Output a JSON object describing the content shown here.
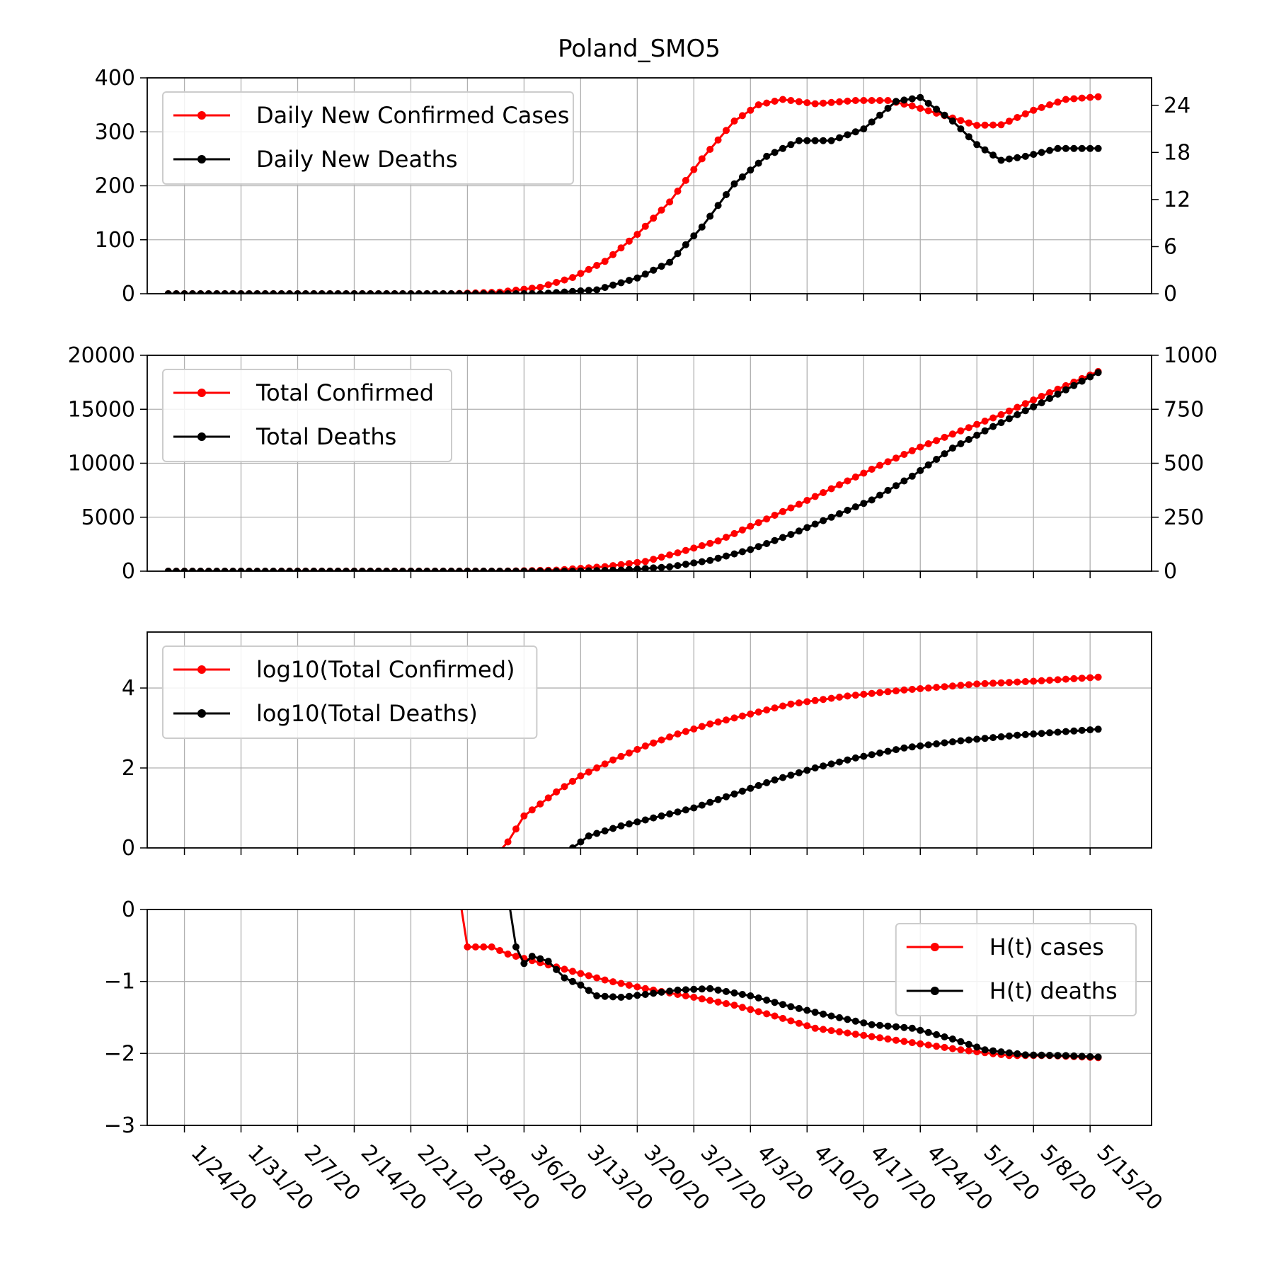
{
  "figure_title": "Poland_SMO5",
  "colors": {
    "cases": "#ff0000",
    "deaths": "#000000",
    "grid": "#b0b0b0"
  },
  "chart_data": [
    {
      "type": "line",
      "title": "Poland_SMO5",
      "x": "days from 1/22/20 to 5/16/20",
      "xticks": [
        "1/24/20",
        "1/31/20",
        "2/7/20",
        "2/14/20",
        "2/21/20",
        "2/28/20",
        "3/6/20",
        "3/13/20",
        "3/20/20",
        "3/27/20",
        "4/3/20",
        "4/10/20",
        "4/17/20",
        "4/24/20",
        "5/1/20",
        "5/8/20",
        "5/15/20"
      ],
      "ylim": [
        0,
        400
      ],
      "yticks": [
        "0",
        "100",
        "200",
        "300",
        "400"
      ],
      "ylim_right": [
        0,
        27.5
      ],
      "yticks_right": [
        "0",
        "6",
        "12",
        "18",
        "24"
      ],
      "grid": true,
      "legend": "upper left",
      "series": [
        {
          "name": "Daily New Confirmed Cases",
          "axis": "left",
          "points": [
            [
              "1/22/20",
              0
            ],
            [
              "2/26/20",
              0
            ],
            [
              "3/3/20",
              3
            ],
            [
              "3/8/20",
              12
            ],
            [
              "3/12/20",
              30
            ],
            [
              "3/16/20",
              60
            ],
            [
              "3/20/20",
              110
            ],
            [
              "3/24/20",
              170
            ],
            [
              "3/28/20",
              250
            ],
            [
              "4/1/20",
              320
            ],
            [
              "4/4/20",
              350
            ],
            [
              "4/7/20",
              360
            ],
            [
              "4/11/20",
              352
            ],
            [
              "4/16/20",
              358
            ],
            [
              "4/20/20",
              358
            ],
            [
              "4/23/20",
              348
            ],
            [
              "4/27/20",
              330
            ],
            [
              "5/1/20",
              312
            ],
            [
              "5/4/20",
              313
            ],
            [
              "5/8/20",
              340
            ],
            [
              "5/12/20",
              360
            ],
            [
              "5/16/20",
              365
            ]
          ]
        },
        {
          "name": "Daily New Deaths",
          "axis": "right",
          "points": [
            [
              "1/22/20",
              0
            ],
            [
              "3/8/20",
              0
            ],
            [
              "3/15/20",
              0.5
            ],
            [
              "3/20/20",
              2
            ],
            [
              "3/24/20",
              4
            ],
            [
              "3/28/20",
              8.5
            ],
            [
              "4/1/20",
              14
            ],
            [
              "4/5/20",
              17.5
            ],
            [
              "4/9/20",
              19.5
            ],
            [
              "4/13/20",
              19.5
            ],
            [
              "4/17/20",
              21
            ],
            [
              "4/21/20",
              24.5
            ],
            [
              "4/24/20",
              25
            ],
            [
              "4/28/20",
              22
            ],
            [
              "5/1/20",
              19
            ],
            [
              "5/4/20",
              17
            ],
            [
              "5/7/20",
              17.5
            ],
            [
              "5/11/20",
              18.5
            ],
            [
              "5/16/20",
              18.5
            ]
          ]
        }
      ]
    },
    {
      "type": "line",
      "xticks": [
        "1/24/20",
        "1/31/20",
        "2/7/20",
        "2/14/20",
        "2/21/20",
        "2/28/20",
        "3/6/20",
        "3/13/20",
        "3/20/20",
        "3/27/20",
        "4/3/20",
        "4/10/20",
        "4/17/20",
        "4/24/20",
        "5/1/20",
        "5/8/20",
        "5/15/20"
      ],
      "ylim": [
        0,
        20000
      ],
      "yticks": [
        "0",
        "5000",
        "10000",
        "15000",
        "20000"
      ],
      "ylim_right": [
        0,
        1000
      ],
      "yticks_right": [
        "0",
        "250",
        "500",
        "750",
        "1000"
      ],
      "grid": true,
      "legend": "upper left",
      "series": [
        {
          "name": "Total Confirmed",
          "axis": "left",
          "points": [
            [
              "1/22/20",
              0
            ],
            [
              "3/4/20",
              10
            ],
            [
              "3/10/20",
              100
            ],
            [
              "3/16/20",
              420
            ],
            [
              "3/21/20",
              900
            ],
            [
              "3/25/20",
              1700
            ],
            [
              "3/30/20",
              2800
            ],
            [
              "4/4/20",
              4500
            ],
            [
              "4/9/20",
              6200
            ],
            [
              "4/14/20",
              8000
            ],
            [
              "4/19/20",
              9800
            ],
            [
              "4/24/20",
              11500
            ],
            [
              "4/29/20",
              13000
            ],
            [
              "5/4/20",
              14500
            ],
            [
              "5/9/20",
              16200
            ],
            [
              "5/16/20",
              18500
            ]
          ]
        },
        {
          "name": "Total Deaths",
          "axis": "right",
          "points": [
            [
              "1/22/20",
              0
            ],
            [
              "3/12/20",
              0
            ],
            [
              "3/18/20",
              5
            ],
            [
              "3/24/20",
              20
            ],
            [
              "3/29/20",
              50
            ],
            [
              "4/3/20",
              100
            ],
            [
              "4/8/20",
              170
            ],
            [
              "4/13/20",
              250
            ],
            [
              "4/18/20",
              330
            ],
            [
              "4/23/20",
              440
            ],
            [
              "4/28/20",
              570
            ],
            [
              "5/3/20",
              670
            ],
            [
              "5/9/20",
              780
            ],
            [
              "5/16/20",
              920
            ]
          ]
        }
      ]
    },
    {
      "type": "line",
      "xticks": [
        "1/24/20",
        "1/31/20",
        "2/7/20",
        "2/14/20",
        "2/21/20",
        "2/28/20",
        "3/6/20",
        "3/13/20",
        "3/20/20",
        "3/27/20",
        "4/3/20",
        "4/10/20",
        "4/17/20",
        "4/24/20",
        "5/1/20",
        "5/8/20",
        "5/15/20"
      ],
      "ylim": [
        0,
        5.4
      ],
      "yticks": [
        "0",
        "2",
        "4"
      ],
      "grid": true,
      "legend": "upper left",
      "series": [
        {
          "name": "log10(Total Confirmed)",
          "axis": "left",
          "points": [
            [
              "3/2/20",
              -0.3
            ],
            [
              "3/4/20",
              0.15
            ],
            [
              "3/6/20",
              0.8
            ],
            [
              "3/8/20",
              1.1
            ],
            [
              "3/10/20",
              1.4
            ],
            [
              "3/13/20",
              1.8
            ],
            [
              "3/17/20",
              2.2
            ],
            [
              "3/21/20",
              2.55
            ],
            [
              "3/25/20",
              2.85
            ],
            [
              "3/29/20",
              3.1
            ],
            [
              "4/3/20",
              3.35
            ],
            [
              "4/8/20",
              3.6
            ],
            [
              "4/15/20",
              3.8
            ],
            [
              "4/22/20",
              3.95
            ],
            [
              "5/1/20",
              4.1
            ],
            [
              "5/8/20",
              4.17
            ],
            [
              "5/16/20",
              4.27
            ]
          ]
        },
        {
          "name": "log10(Total Deaths)",
          "axis": "left",
          "points": [
            [
              "3/11/20",
              -0.2
            ],
            [
              "3/12/20",
              0.0
            ],
            [
              "3/14/20",
              0.3
            ],
            [
              "3/18/20",
              0.55
            ],
            [
              "3/22/20",
              0.75
            ],
            [
              "3/27/20",
              1.0
            ],
            [
              "4/1/20",
              1.35
            ],
            [
              "4/6/20",
              1.7
            ],
            [
              "4/11/20",
              2.0
            ],
            [
              "4/16/20",
              2.25
            ],
            [
              "4/22/20",
              2.5
            ],
            [
              "4/29/20",
              2.68
            ],
            [
              "5/6/20",
              2.82
            ],
            [
              "5/16/20",
              2.97
            ]
          ]
        }
      ]
    },
    {
      "type": "line",
      "xticks": [
        "1/24/20",
        "1/31/20",
        "2/7/20",
        "2/14/20",
        "2/21/20",
        "2/28/20",
        "3/6/20",
        "3/13/20",
        "3/20/20",
        "3/27/20",
        "4/3/20",
        "4/10/20",
        "4/17/20",
        "4/24/20",
        "5/1/20",
        "5/8/20",
        "5/15/20"
      ],
      "ylim": [
        -3,
        0
      ],
      "yticks": [
        "−3",
        "−2",
        "−1",
        "0"
      ],
      "grid": true,
      "legend": "upper right",
      "series": [
        {
          "name": "H(t) cases",
          "axis": "left",
          "points": [
            [
              "2/27/20",
              0.2
            ],
            [
              "2/28/20",
              -0.52
            ],
            [
              "3/2/20",
              -0.52
            ],
            [
              "3/4/20",
              -0.62
            ],
            [
              "3/10/20",
              -0.8
            ],
            [
              "3/16/20",
              -0.98
            ],
            [
              "3/21/20",
              -1.1
            ],
            [
              "3/27/20",
              -1.22
            ],
            [
              "4/1/20",
              -1.33
            ],
            [
              "4/6/20",
              -1.48
            ],
            [
              "4/11/20",
              -1.65
            ],
            [
              "4/17/20",
              -1.75
            ],
            [
              "4/23/20",
              -1.85
            ],
            [
              "4/29/20",
              -1.95
            ],
            [
              "5/5/20",
              -2.03
            ],
            [
              "5/10/20",
              -2.03
            ],
            [
              "5/16/20",
              -2.06
            ]
          ]
        },
        {
          "name": "H(t) deaths",
          "axis": "left",
          "points": [
            [
              "3/4/20",
              0.2
            ],
            [
              "3/5/20",
              -0.52
            ],
            [
              "3/6/20",
              -0.75
            ],
            [
              "3/7/20",
              -0.65
            ],
            [
              "3/9/20",
              -0.72
            ],
            [
              "3/11/20",
              -0.95
            ],
            [
              "3/13/20",
              -1.05
            ],
            [
              "3/15/20",
              -1.2
            ],
            [
              "3/18/20",
              -1.22
            ],
            [
              "3/21/20",
              -1.18
            ],
            [
              "3/25/20",
              -1.12
            ],
            [
              "3/29/20",
              -1.1
            ],
            [
              "4/3/20",
              -1.2
            ],
            [
              "4/8/20",
              -1.35
            ],
            [
              "4/13/20",
              -1.48
            ],
            [
              "4/18/20",
              -1.6
            ],
            [
              "4/23/20",
              -1.65
            ],
            [
              "4/28/20",
              -1.8
            ],
            [
              "5/2/20",
              -1.95
            ],
            [
              "5/7/20",
              -2.02
            ],
            [
              "5/12/20",
              -2.03
            ],
            [
              "5/16/20",
              -2.05
            ]
          ]
        }
      ]
    }
  ]
}
